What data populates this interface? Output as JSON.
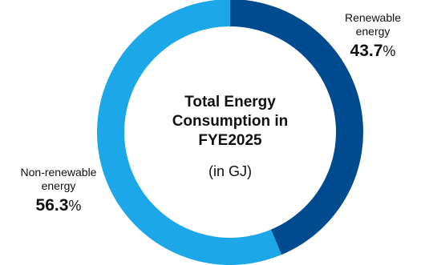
{
  "chart_data": {
    "type": "pie",
    "donut": true,
    "title_lines": [
      "Total Energy",
      "Consumption in",
      "FYE2025"
    ],
    "subtitle": "(in GJ)",
    "percent_symbol": "%",
    "slices": [
      {
        "label_lines": [
          "Renewable",
          "energy"
        ],
        "value": 43.7,
        "value_text": "43.7",
        "color": "#004A8F"
      },
      {
        "label_lines": [
          "Non-renewable",
          "energy"
        ],
        "value": 56.3,
        "value_text": "56.3",
        "color": "#1BA7E8"
      }
    ],
    "start_angle_deg": 0,
    "direction": "clockwise"
  }
}
